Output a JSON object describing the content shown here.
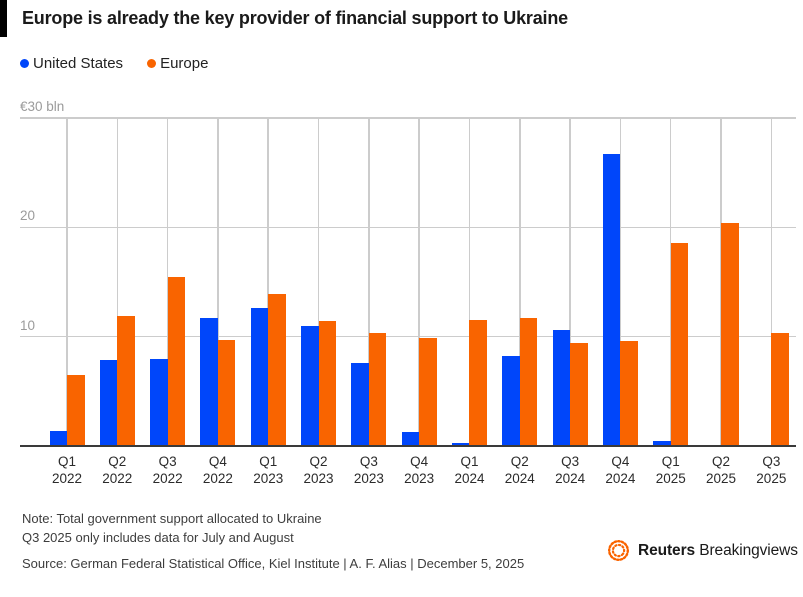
{
  "title": "Europe is already the key provider of financial support to Ukraine",
  "note_line1": "Note: Total government support allocated to Ukraine",
  "note_line2": "Q3 2025 only includes data for July and August",
  "source": "Source: German Federal Statistical Office, Kiel Institute | A. F. Alias | December 5, 2025",
  "logo": {
    "brand": "Reuters",
    "suffix": "Breakingviews",
    "icon": "reuters-dotted-circle-icon",
    "icon_color": "#fa6400"
  },
  "colors": {
    "us_blue": "#0046fa",
    "europe_orange": "#f96400",
    "gridline": "#cccccc",
    "axis_line": "#3a3a3a",
    "axis_label": "#9b9b9b",
    "text_dark": "#1a1a1a"
  },
  "chart_data": {
    "type": "bar",
    "title": "Europe is already the key provider of financial support to Ukraine",
    "unit": "€ bln",
    "ylabel": "€ bln",
    "xlabel": "",
    "ylim": [
      0,
      30
    ],
    "grid": true,
    "legend_position": "top-left",
    "yticks": [
      {
        "value": 30,
        "label": "€30 bln"
      },
      {
        "value": 20,
        "label": "20"
      },
      {
        "value": 10,
        "label": "10"
      }
    ],
    "categories": [
      "Q1 2022",
      "Q2 2022",
      "Q3 2022",
      "Q4 2022",
      "Q1 2023",
      "Q2 2023",
      "Q3 2023",
      "Q4 2023",
      "Q1 2024",
      "Q2 2024",
      "Q3 2024",
      "Q4 2024",
      "Q1 2025",
      "Q2 2025",
      "Q3 2025"
    ],
    "series": [
      {
        "name": "United States",
        "color": "#0046fa",
        "values": [
          1.4,
          7.9,
          8.0,
          11.7,
          12.6,
          11.0,
          7.6,
          1.3,
          0.3,
          8.2,
          10.6,
          26.7,
          0.5,
          0,
          0
        ]
      },
      {
        "name": "Europe",
        "color": "#f96400",
        "values": [
          6.5,
          11.9,
          15.5,
          9.7,
          13.9,
          11.4,
          10.3,
          9.9,
          11.5,
          11.7,
          9.4,
          9.6,
          18.6,
          20.4,
          10.3
        ]
      }
    ]
  }
}
